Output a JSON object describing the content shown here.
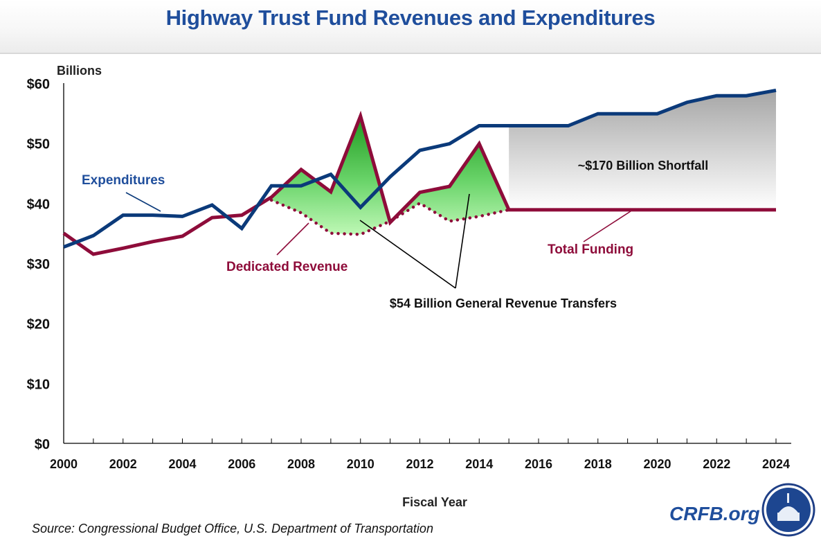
{
  "chart_data": {
    "type": "line",
    "title": "Highway Trust Fund Revenues and Expenditures",
    "ylabel": "Billions",
    "xlabel": "Fiscal Year",
    "ylim": [
      0,
      60
    ],
    "xlim": [
      2000,
      2024
    ],
    "y_ticks": [
      0,
      10,
      20,
      30,
      40,
      50,
      60
    ],
    "y_tick_labels": [
      "$0",
      "$10",
      "$20",
      "$30",
      "$40",
      "$50",
      "$60"
    ],
    "x_tick_labels": [
      "2000",
      "2002",
      "2004",
      "2006",
      "2008",
      "2010",
      "2012",
      "2014",
      "2016",
      "2018",
      "2020",
      "2022",
      "2024"
    ],
    "x_tick_values": [
      2000,
      2002,
      2004,
      2006,
      2008,
      2010,
      2012,
      2014,
      2016,
      2018,
      2020,
      2022,
      2024
    ],
    "grid": false,
    "x": [
      2000,
      2001,
      2002,
      2003,
      2004,
      2005,
      2006,
      2007,
      2008,
      2009,
      2010,
      2011,
      2012,
      2013,
      2014,
      2015,
      2016,
      2017,
      2018,
      2019,
      2020,
      2021,
      2022,
      2023,
      2024
    ],
    "series": [
      {
        "name": "Expenditures",
        "color": "#0b3a7a",
        "style": "solid",
        "values": [
          32.7,
          34.6,
          38.0,
          38.0,
          37.8,
          39.7,
          35.8,
          42.9,
          42.9,
          44.8,
          39.3,
          44.4,
          48.8,
          49.9,
          52.9,
          52.9,
          52.9,
          52.9,
          54.9,
          54.9,
          54.9,
          56.8,
          57.9,
          57.9,
          58.8
        ]
      },
      {
        "name": "Total Funding",
        "color": "#8e0c3a",
        "style": "solid",
        "values": [
          35.0,
          31.5,
          32.5,
          33.6,
          34.5,
          37.6,
          38.0,
          41.0,
          45.6,
          41.9,
          54.5,
          36.8,
          41.8,
          42.8,
          49.9,
          38.9,
          38.9,
          38.9,
          38.9,
          38.9,
          38.9,
          38.9,
          38.9,
          38.9,
          38.9
        ]
      },
      {
        "name": "Dedicated Revenue",
        "color": "#8e0c3a",
        "style": "dotted",
        "x": [
          2007,
          2008,
          2009,
          2010,
          2011,
          2012,
          2013,
          2014,
          2015
        ],
        "values": [
          40.5,
          38.4,
          35.0,
          34.8,
          37.0,
          40.0,
          37.0,
          37.8,
          38.9
        ]
      }
    ],
    "shaded_areas": [
      {
        "name": "General Revenue Transfers",
        "between": [
          "Total Funding",
          "Dedicated Revenue"
        ],
        "x_range": [
          2007,
          2015
        ],
        "color_top": "#1f9a1f",
        "color_bottom": "#b8f5b0"
      },
      {
        "name": "Shortfall",
        "between": [
          "Expenditures",
          "Total Funding"
        ],
        "x_range": [
          2015,
          2024
        ],
        "color_top": "#a9a9a9",
        "color_bottom": "#ffffff"
      }
    ],
    "annotations": [
      {
        "text": "Expenditures",
        "color": "#1f4e9c",
        "points_to": "Expenditures"
      },
      {
        "text": "Dedicated Revenue",
        "color": "#8e0c3a",
        "points_to": "Dedicated Revenue"
      },
      {
        "text": "Total Funding",
        "color": "#8e0c3a",
        "points_to": "Total Funding"
      },
      {
        "text": "~$170 Billion Shortfall",
        "color": "#111111"
      },
      {
        "text": "$54 Billion General Revenue Transfers",
        "color": "#111111"
      }
    ]
  },
  "footer": {
    "source": "Source: Congressional Budget Office, U.S. Department of Transportation",
    "brand": "CRFB.org",
    "logo": "capitol-dome-logo"
  }
}
